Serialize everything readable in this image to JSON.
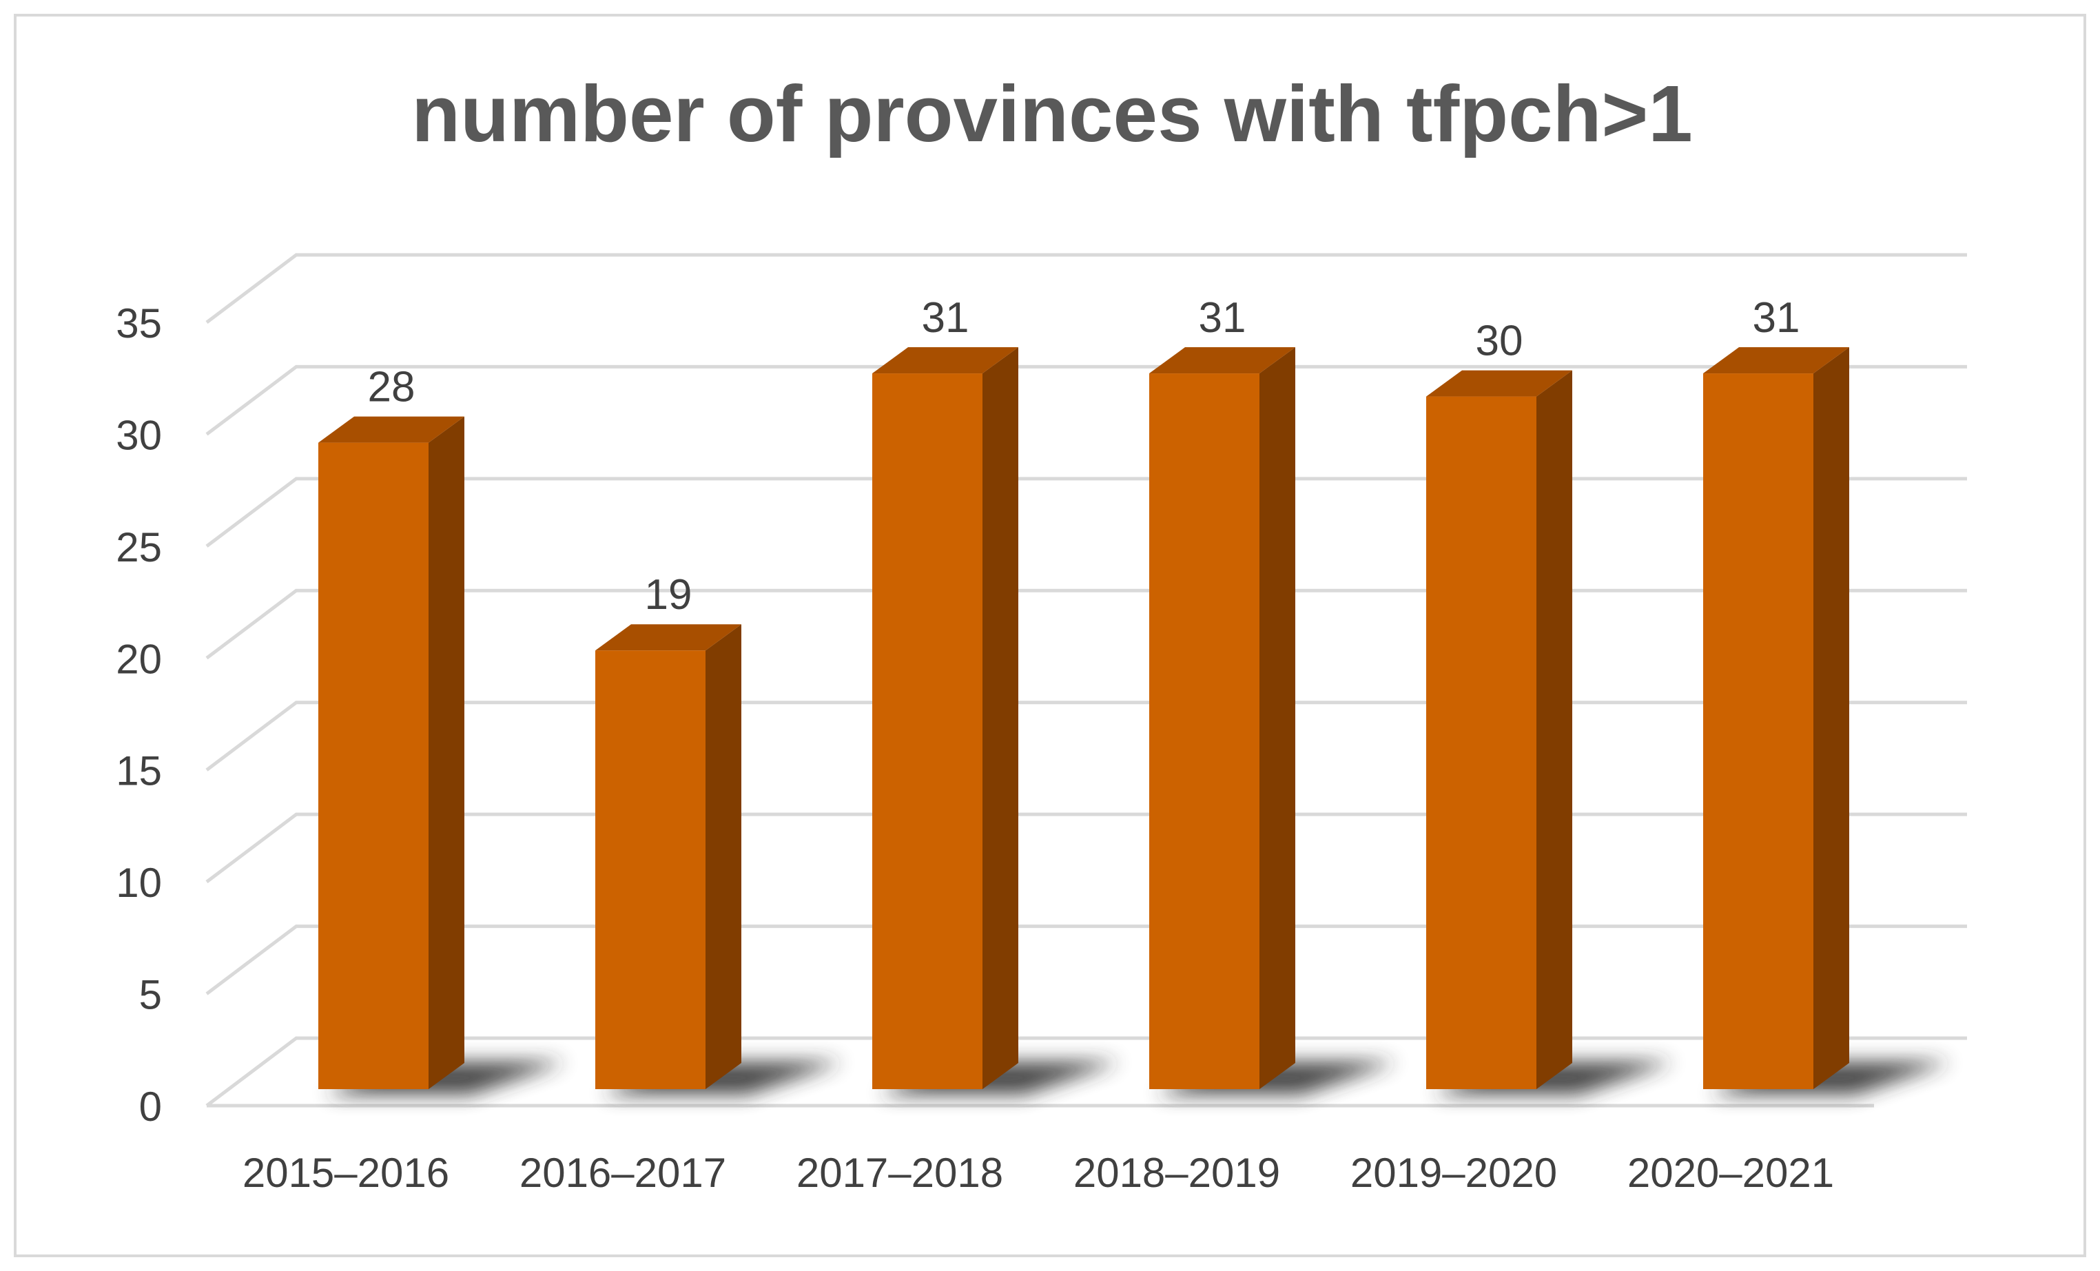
{
  "chart_data": {
    "type": "bar",
    "title": "number of provinces with tfpch>1",
    "xlabel": "",
    "ylabel": "",
    "categories": [
      "2015–2016",
      "2016–2017",
      "2017–2018",
      "2018–2019",
      "2019–2020",
      "2020–2021"
    ],
    "values": [
      28,
      19,
      31,
      31,
      30,
      31
    ],
    "data_labels": [
      "28",
      "19",
      "31",
      "31",
      "30",
      "31"
    ],
    "ylim": [
      0,
      35
    ],
    "yticks": [
      "0",
      "5",
      "10",
      "15",
      "20",
      "25",
      "30",
      "35"
    ],
    "grid": true,
    "legend": "none",
    "style": "3d-column",
    "colors": {
      "bar_front": "#CC6200",
      "bar_top": "#A84F00",
      "bar_side": "#813D00",
      "shadow": "#2a2a2a",
      "gridline": "#D9D9D9",
      "title": "#595959",
      "axis_text": "#404040",
      "frame": "#D9D9D9"
    }
  }
}
